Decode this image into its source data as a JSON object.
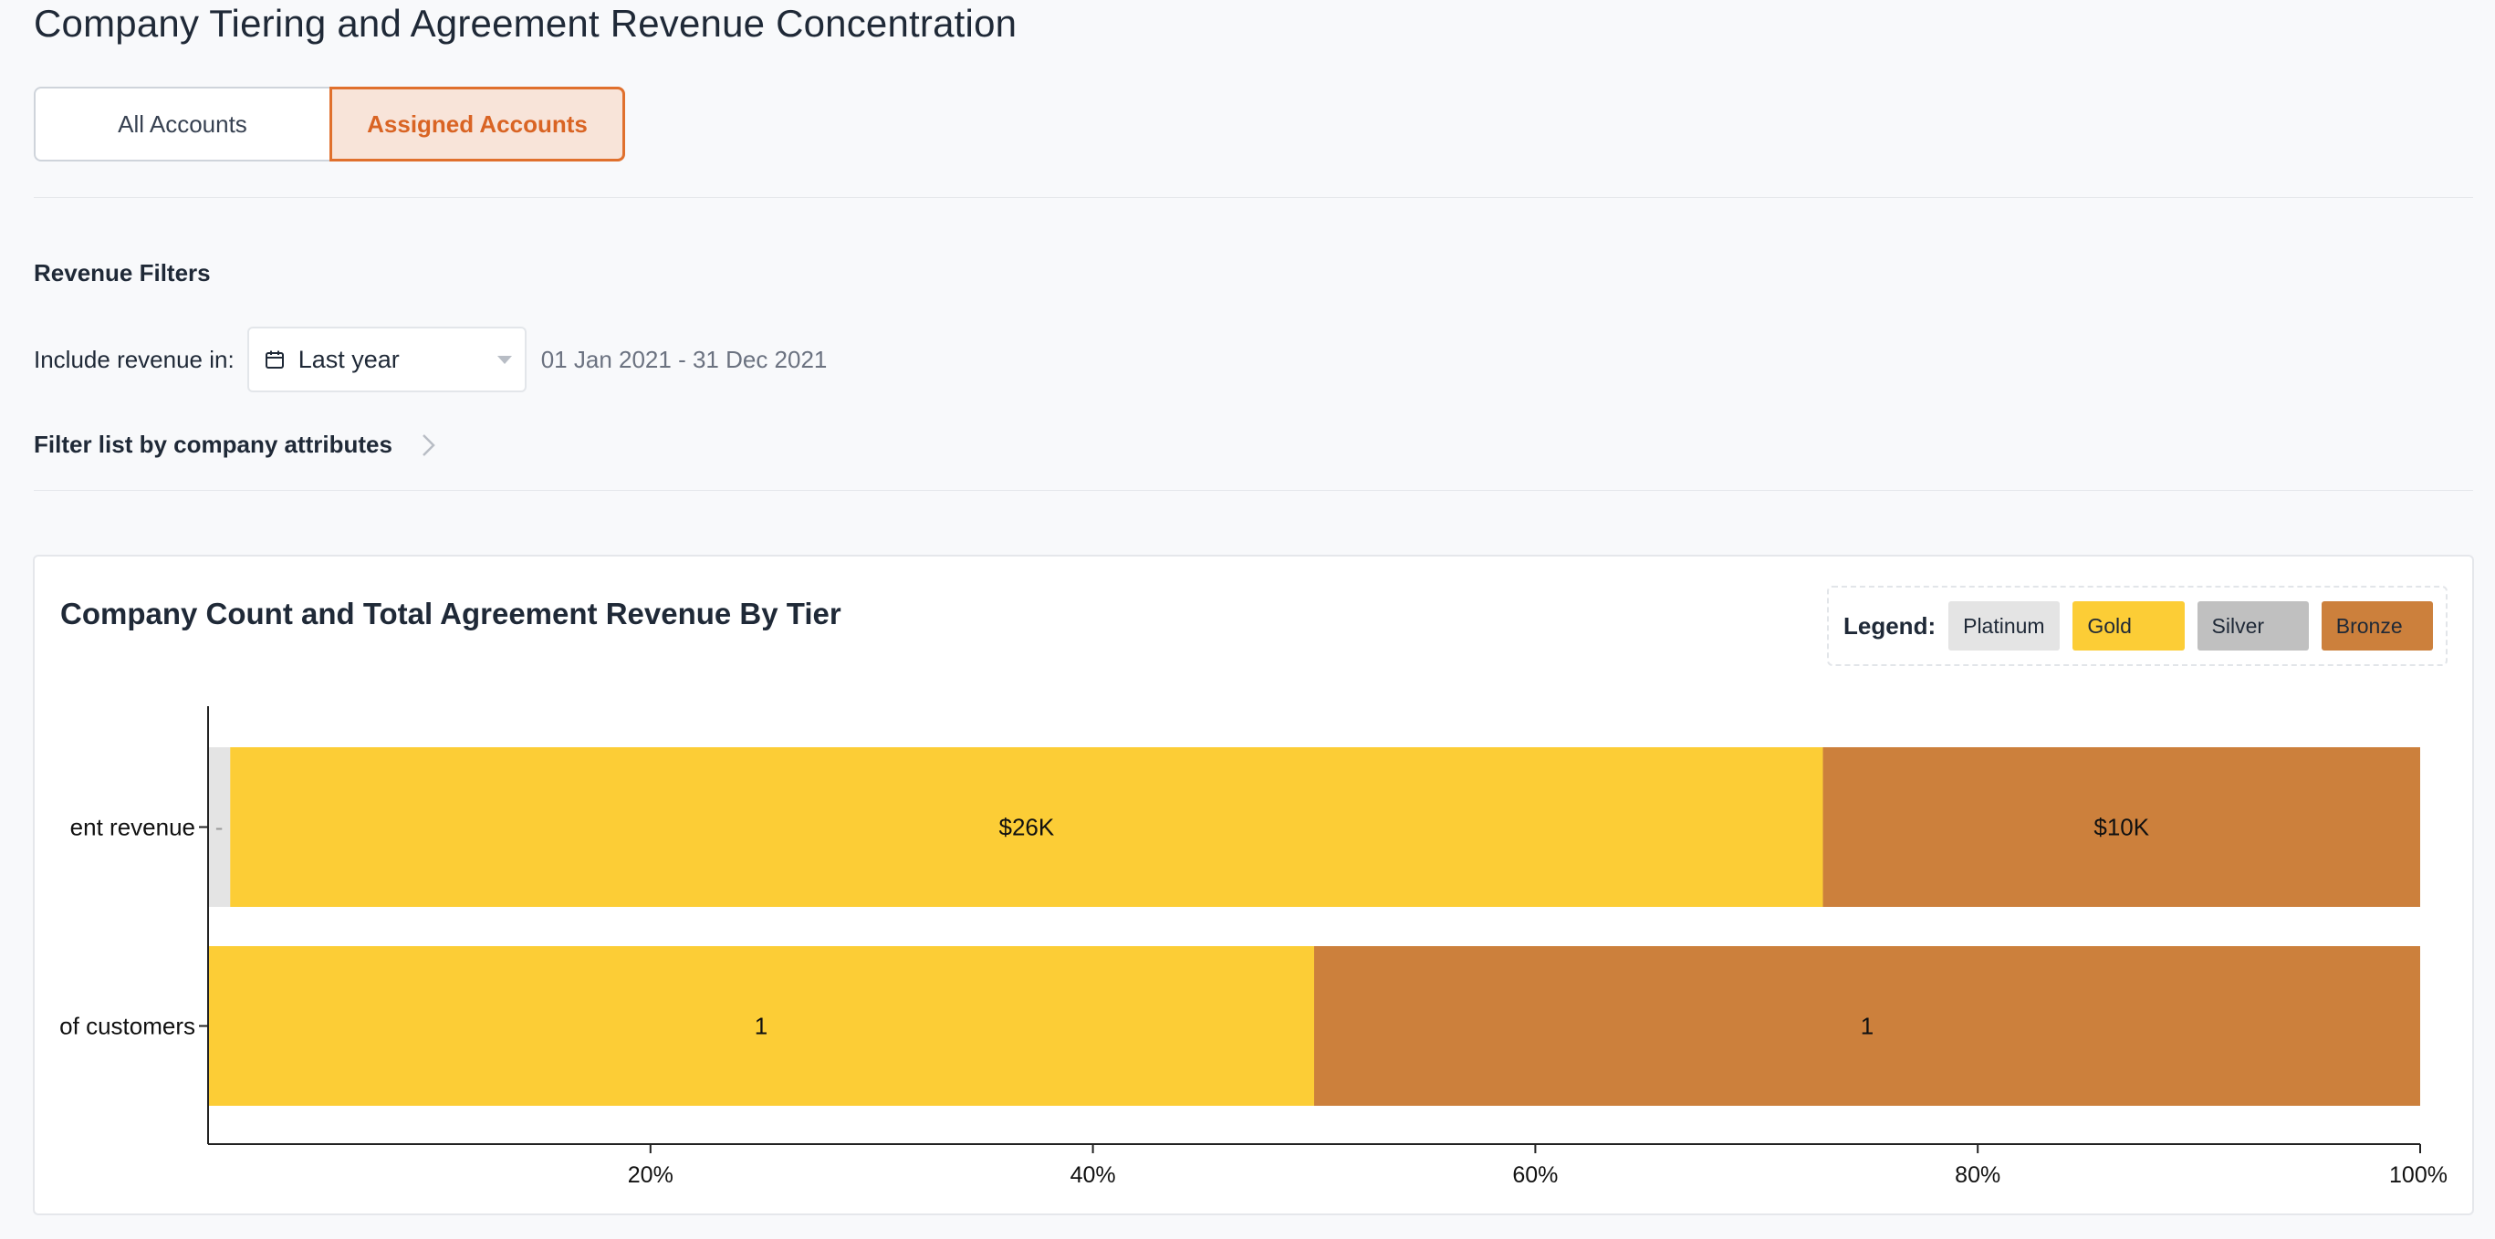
{
  "page": {
    "title": "Company Tiering and Agreement Revenue Concentration"
  },
  "segment": {
    "all_label": "All Accounts",
    "assigned_label": "Assigned Accounts",
    "selected": "Assigned Accounts"
  },
  "filters": {
    "section_label": "Revenue Filters",
    "include_label": "Include revenue in:",
    "period_value": "Last year",
    "date_range": "01 Jan 2021 - 31 Dec 2021",
    "attributes_label": "Filter list by company attributes"
  },
  "card": {
    "title": "Company Count and Total Agreement Revenue By Tier"
  },
  "legend": {
    "label": "Legend:",
    "items": [
      {
        "name": "Platinum",
        "color": "#e4e4e4"
      },
      {
        "name": "Gold",
        "color": "#fccd36"
      },
      {
        "name": "Silver",
        "color": "#c0c0c0"
      },
      {
        "name": "Bronze",
        "color": "#cc803c"
      }
    ]
  },
  "chart_data": {
    "type": "bar",
    "orientation": "horizontal",
    "stacked": "percent",
    "categories": [
      "Total agreement revenue",
      "Number of customers"
    ],
    "category_labels_visible": [
      "ent revenue",
      "of customers"
    ],
    "series": [
      {
        "name": "Platinum",
        "color": "#e4e4e4",
        "percent": [
          1,
          0
        ],
        "labels": [
          "-",
          ""
        ]
      },
      {
        "name": "Gold",
        "color": "#fccd36",
        "percent": [
          72,
          50
        ],
        "labels": [
          "$26K",
          "1"
        ]
      },
      {
        "name": "Silver",
        "color": "#c0c0c0",
        "percent": [
          0,
          0
        ],
        "labels": [
          "",
          ""
        ]
      },
      {
        "name": "Bronze",
        "color": "#cc803c",
        "percent": [
          27,
          50
        ],
        "labels": [
          "$10K",
          "1"
        ]
      }
    ],
    "xticks": [
      "20%",
      "40%",
      "60%",
      "80%",
      "100%"
    ],
    "xtick_values": [
      20,
      40,
      60,
      80,
      100
    ],
    "xlim": [
      0,
      100
    ],
    "grid": false
  }
}
